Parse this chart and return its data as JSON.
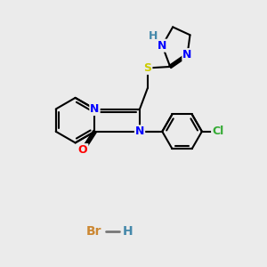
{
  "bg_color": "#ebebeb",
  "bond_color": "#000000",
  "bond_width": 1.5,
  "atom_colors": {
    "N": "#0000ff",
    "O": "#ff0000",
    "S": "#cccc00",
    "Cl": "#33aa33",
    "Br": "#cc8833",
    "H_teal": "#4488aa"
  },
  "font_size": 9,
  "br_color": "#cc8833",
  "h_color": "#4488aa"
}
